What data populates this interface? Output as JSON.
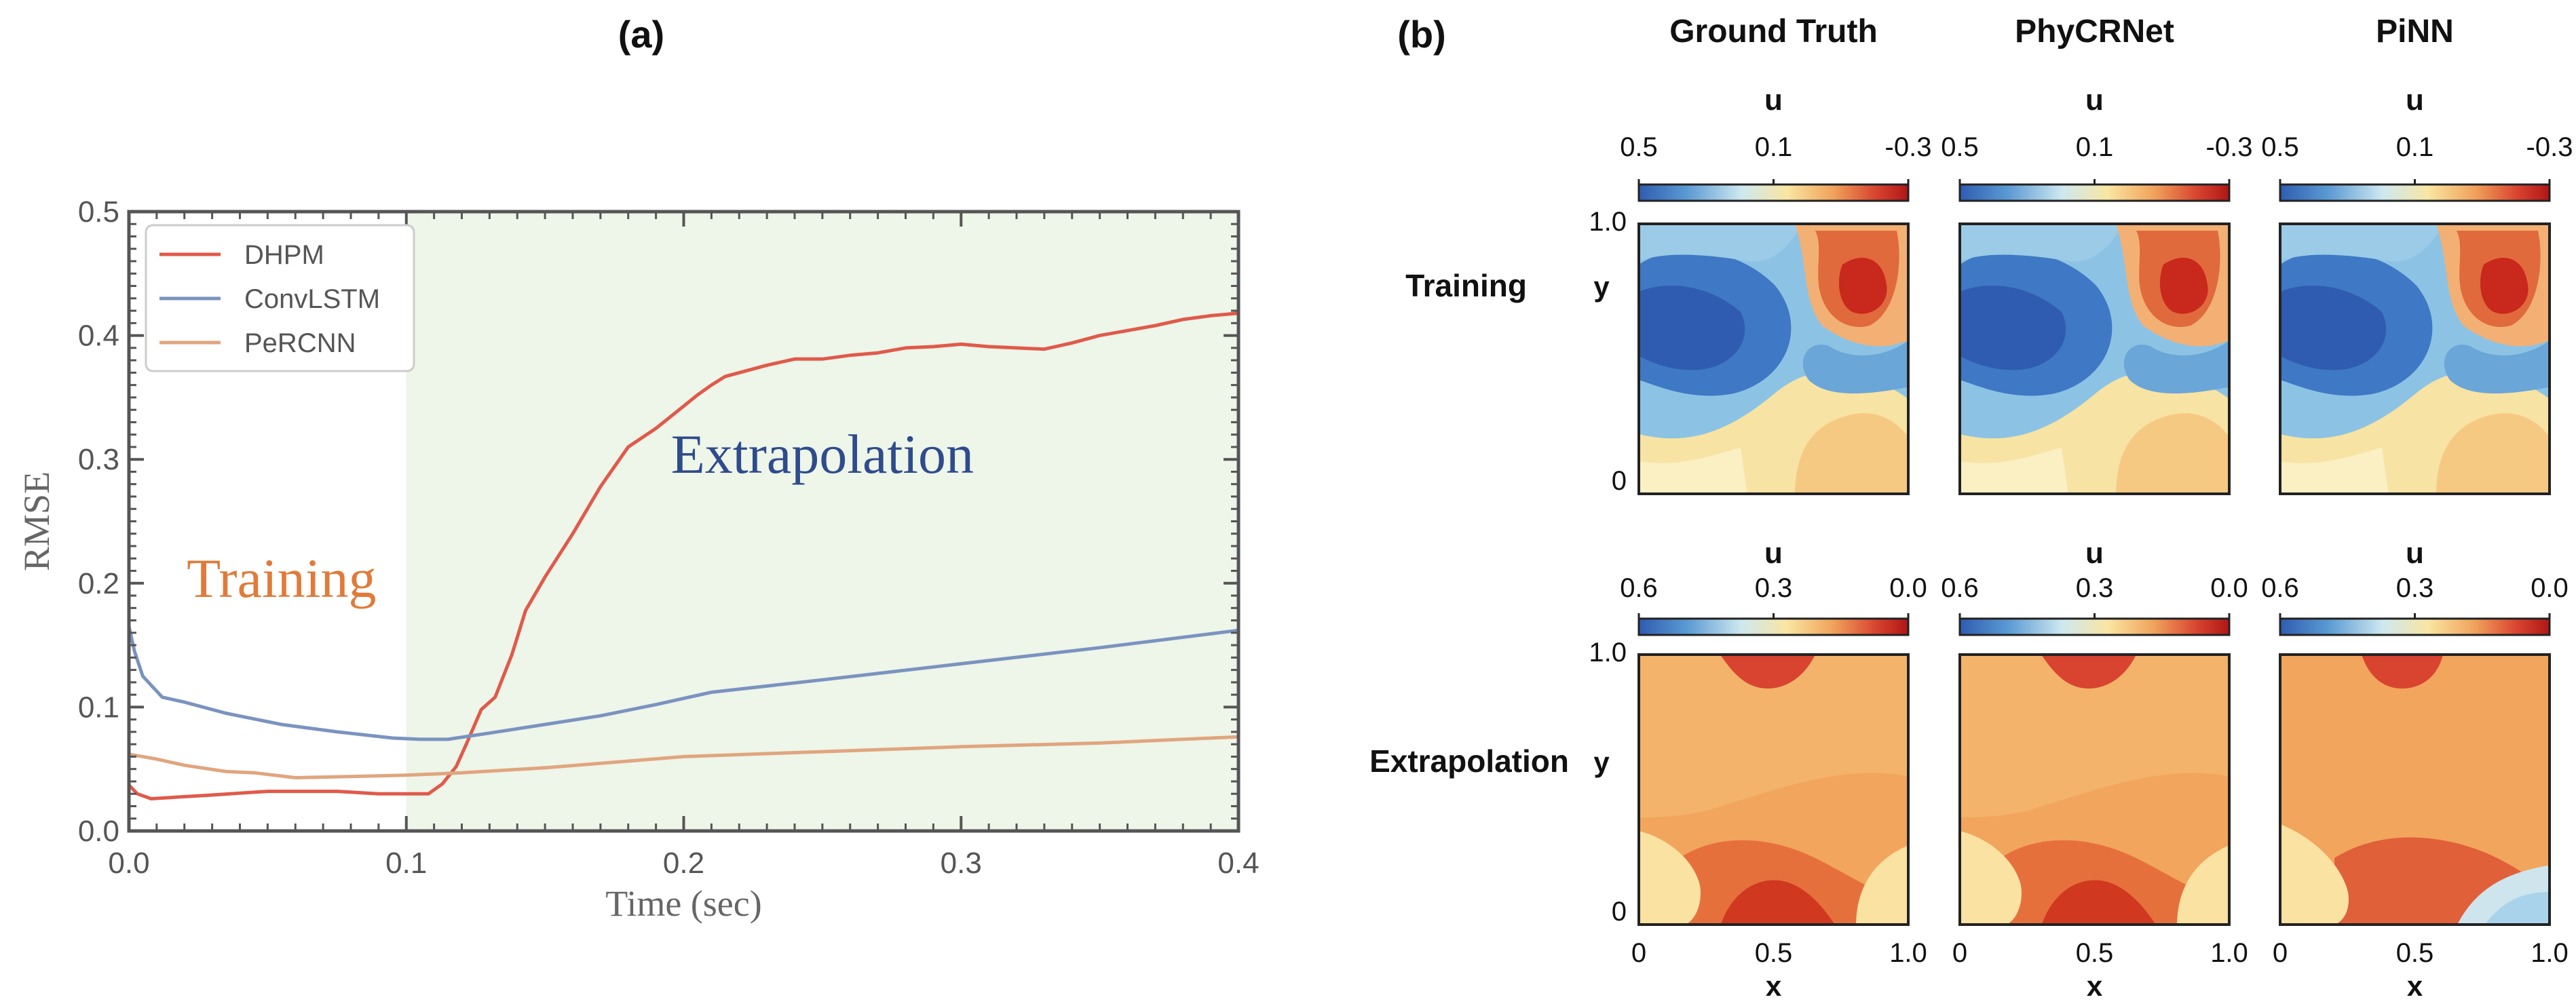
{
  "panel_a": {
    "label": "(a)",
    "chart_data": {
      "type": "line",
      "title": "",
      "xlabel": "Time (sec)",
      "ylabel": "RMSE",
      "xlim": [
        0,
        0.4
      ],
      "ylim": [
        0,
        0.5
      ],
      "xticks": [
        "0.0",
        "0.1",
        "0.2",
        "0.3",
        "0.4"
      ],
      "yticks": [
        "0.0",
        "0.1",
        "0.2",
        "0.3",
        "0.4",
        "0.5"
      ],
      "regions": [
        {
          "label": "Training",
          "x_range": [
            0,
            0.1
          ],
          "color": "#ffffff",
          "text_color": "#e07b39"
        },
        {
          "label": "Extrapolation",
          "x_range": [
            0.1,
            0.4
          ],
          "color": "#eef5e9",
          "text_color": "#2e4c8c"
        }
      ],
      "legend_position": "top-left",
      "series": [
        {
          "name": "DHPM",
          "color": "#e05a4a",
          "x": [
            0,
            0.003,
            0.008,
            0.015,
            0.03,
            0.05,
            0.075,
            0.09,
            0.1,
            0.108,
            0.113,
            0.118,
            0.122,
            0.127,
            0.132,
            0.138,
            0.143,
            0.15,
            0.16,
            0.17,
            0.18,
            0.19,
            0.2,
            0.205,
            0.21,
            0.215,
            0.22,
            0.23,
            0.24,
            0.25,
            0.26,
            0.27,
            0.28,
            0.29,
            0.3,
            0.31,
            0.32,
            0.33,
            0.34,
            0.35,
            0.36,
            0.37,
            0.38,
            0.39,
            0.4
          ],
          "y": [
            0.037,
            0.03,
            0.026,
            0.027,
            0.029,
            0.032,
            0.032,
            0.03,
            0.03,
            0.03,
            0.038,
            0.052,
            0.072,
            0.098,
            0.108,
            0.142,
            0.178,
            0.205,
            0.24,
            0.278,
            0.31,
            0.325,
            0.343,
            0.352,
            0.36,
            0.367,
            0.37,
            0.376,
            0.381,
            0.381,
            0.384,
            0.386,
            0.39,
            0.391,
            0.393,
            0.391,
            0.39,
            0.389,
            0.394,
            0.4,
            0.404,
            0.408,
            0.413,
            0.416,
            0.418
          ]
        },
        {
          "name": "ConvLSTM",
          "color": "#7a93bf",
          "x": [
            0,
            0.002,
            0.005,
            0.012,
            0.02,
            0.035,
            0.055,
            0.075,
            0.095,
            0.105,
            0.115,
            0.13,
            0.15,
            0.17,
            0.19,
            0.21,
            0.25,
            0.3,
            0.35,
            0.4
          ],
          "y": [
            0.165,
            0.145,
            0.125,
            0.108,
            0.104,
            0.095,
            0.086,
            0.08,
            0.075,
            0.074,
            0.074,
            0.079,
            0.086,
            0.093,
            0.102,
            0.112,
            0.122,
            0.135,
            0.148,
            0.162
          ]
        },
        {
          "name": "PeRCNN",
          "color": "#e0a57f",
          "x": [
            0,
            0.01,
            0.02,
            0.035,
            0.045,
            0.06,
            0.08,
            0.1,
            0.12,
            0.15,
            0.2,
            0.25,
            0.3,
            0.35,
            0.4
          ],
          "y": [
            0.062,
            0.058,
            0.053,
            0.048,
            0.047,
            0.043,
            0.044,
            0.045,
            0.047,
            0.051,
            0.06,
            0.064,
            0.068,
            0.071,
            0.076
          ]
        }
      ]
    }
  },
  "panel_b": {
    "label": "(b)",
    "column_titles": [
      "Ground Truth",
      "PhyCRNet",
      "PiNN"
    ],
    "row_labels": [
      "Training",
      "Extrapolation"
    ],
    "axis_labels": {
      "x": "x",
      "y": "y"
    },
    "x_ticks": [
      "0",
      "0.5",
      "1.0"
    ],
    "y_ticks": [
      "0",
      "1.0"
    ],
    "colorbar_title": "u",
    "colorbars": [
      {
        "ticks": [
          "0.5",
          "0.1",
          "-0.3"
        ]
      },
      {
        "ticks": [
          "0.6",
          "0.3",
          "0.0"
        ]
      }
    ],
    "colormap": [
      "#2f5cb0",
      "#5b9ad3",
      "#bfe0ee",
      "#f8e4a0",
      "#f0a35c",
      "#d8442f",
      "#b01616"
    ]
  }
}
